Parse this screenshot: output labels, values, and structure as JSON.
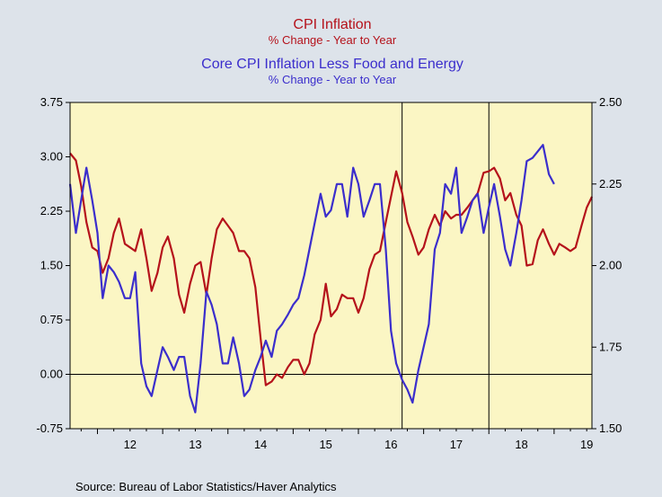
{
  "colors": {
    "background": "#dde3ea",
    "plot_fill": "#fbf6c4",
    "cpi": "#b5121b",
    "core": "#3b2ecc"
  },
  "chart_data": {
    "type": "line",
    "title": "CPI Inflation",
    "title_sub": "% Change - Year to Year",
    "title2": "Core CPI Inflation Less Food and Energy",
    "title2_sub": "% Change - Year to Year",
    "source": "Source:  Bureau of Labor Statistics/Haver Analytics",
    "x_start": 2011.58,
    "x_end": 2019.58,
    "x_tick_labels": [
      {
        "x": 2012.0,
        "label": "12"
      },
      {
        "x": 2013.0,
        "label": "13"
      },
      {
        "x": 2014.0,
        "label": "14"
      },
      {
        "x": 2015.0,
        "label": "15"
      },
      {
        "x": 2016.0,
        "label": "16"
      },
      {
        "x": 2017.0,
        "label": "17"
      },
      {
        "x": 2018.0,
        "label": "18"
      },
      {
        "x": 2019.0,
        "label": "19"
      }
    ],
    "vertical_markers": [
      2016.67,
      2018.0
    ],
    "left_axis": {
      "ylim": [
        -0.75,
        3.75
      ],
      "ticks": [
        -0.75,
        0.0,
        0.75,
        1.5,
        2.25,
        3.0,
        3.75
      ],
      "tick_labels": [
        "-0.75",
        "0.00",
        "0.75",
        "1.50",
        "2.25",
        "3.00",
        "3.75"
      ]
    },
    "right_axis": {
      "ylim": [
        1.5,
        2.5
      ],
      "ticks": [
        1.5,
        1.75,
        2.0,
        2.25,
        2.5
      ],
      "tick_labels": [
        "1.50",
        "1.75",
        "2.00",
        "2.25",
        "2.50"
      ]
    },
    "series": [
      {
        "name": "CPI Inflation",
        "axis": "left",
        "color": "#b5121b",
        "points": [
          [
            2011.58,
            3.05
          ],
          [
            2011.67,
            2.95
          ],
          [
            2011.75,
            2.6
          ],
          [
            2011.83,
            2.1
          ],
          [
            2011.92,
            1.75
          ],
          [
            2012.0,
            1.7
          ],
          [
            2012.08,
            1.4
          ],
          [
            2012.17,
            1.6
          ],
          [
            2012.25,
            1.95
          ],
          [
            2012.33,
            2.15
          ],
          [
            2012.42,
            1.8
          ],
          [
            2012.5,
            1.75
          ],
          [
            2012.58,
            1.7
          ],
          [
            2012.67,
            2.0
          ],
          [
            2012.75,
            1.6
          ],
          [
            2012.83,
            1.15
          ],
          [
            2012.92,
            1.4
          ],
          [
            2013.0,
            1.75
          ],
          [
            2013.08,
            1.9
          ],
          [
            2013.17,
            1.6
          ],
          [
            2013.25,
            1.1
          ],
          [
            2013.33,
            0.85
          ],
          [
            2013.42,
            1.25
          ],
          [
            2013.5,
            1.5
          ],
          [
            2013.58,
            1.55
          ],
          [
            2013.67,
            1.1
          ],
          [
            2013.75,
            1.6
          ],
          [
            2013.83,
            2.0
          ],
          [
            2013.92,
            2.15
          ],
          [
            2014.0,
            2.05
          ],
          [
            2014.08,
            1.95
          ],
          [
            2014.17,
            1.7
          ],
          [
            2014.25,
            1.7
          ],
          [
            2014.33,
            1.6
          ],
          [
            2014.42,
            1.2
          ],
          [
            2014.5,
            0.5
          ],
          [
            2014.58,
            -0.15
          ],
          [
            2014.67,
            -0.1
          ],
          [
            2014.75,
            0.0
          ],
          [
            2014.83,
            -0.05
          ],
          [
            2014.92,
            0.1
          ],
          [
            2015.0,
            0.2
          ],
          [
            2015.08,
            0.2
          ],
          [
            2015.17,
            0.0
          ],
          [
            2015.25,
            0.15
          ],
          [
            2015.33,
            0.55
          ],
          [
            2015.42,
            0.75
          ],
          [
            2015.5,
            1.25
          ],
          [
            2015.58,
            0.8
          ],
          [
            2015.67,
            0.9
          ],
          [
            2015.75,
            1.1
          ],
          [
            2015.83,
            1.05
          ],
          [
            2015.92,
            1.05
          ],
          [
            2016.0,
            0.85
          ],
          [
            2016.08,
            1.05
          ],
          [
            2016.17,
            1.45
          ],
          [
            2016.25,
            1.65
          ],
          [
            2016.33,
            1.7
          ],
          [
            2016.42,
            2.1
          ],
          [
            2016.5,
            2.45
          ],
          [
            2016.58,
            2.8
          ],
          [
            2016.67,
            2.5
          ],
          [
            2016.75,
            2.1
          ],
          [
            2016.83,
            1.9
          ],
          [
            2016.92,
            1.65
          ],
          [
            2017.0,
            1.75
          ],
          [
            2017.08,
            2.0
          ],
          [
            2017.17,
            2.2
          ],
          [
            2017.25,
            2.05
          ],
          [
            2017.33,
            2.25
          ],
          [
            2017.42,
            2.15
          ],
          [
            2017.5,
            2.2
          ],
          [
            2017.58,
            2.2
          ],
          [
            2017.67,
            2.3
          ],
          [
            2017.75,
            2.4
          ],
          [
            2017.83,
            2.5
          ],
          [
            2017.92,
            2.78
          ],
          [
            2018.0,
            2.8
          ],
          [
            2018.08,
            2.85
          ],
          [
            2018.17,
            2.7
          ],
          [
            2018.25,
            2.4
          ],
          [
            2018.33,
            2.5
          ],
          [
            2018.42,
            2.2
          ],
          [
            2018.5,
            2.05
          ],
          [
            2018.58,
            1.5
          ],
          [
            2018.67,
            1.52
          ],
          [
            2018.75,
            1.85
          ],
          [
            2018.83,
            2.0
          ],
          [
            2018.92,
            1.8
          ],
          [
            2019.0,
            1.65
          ],
          [
            2019.08,
            1.8
          ],
          [
            2019.17,
            1.75
          ],
          [
            2019.25,
            1.7
          ],
          [
            2019.33,
            1.75
          ],
          [
            2019.42,
            2.05
          ],
          [
            2019.5,
            2.3
          ],
          [
            2019.58,
            2.45
          ]
        ]
      },
      {
        "name": "Core CPI Inflation Less Food and Energy",
        "axis": "right",
        "color": "#3b2ecc",
        "points": [
          [
            2011.58,
            2.25
          ],
          [
            2011.67,
            2.1
          ],
          [
            2011.75,
            2.2
          ],
          [
            2011.83,
            2.3
          ],
          [
            2011.92,
            2.2
          ],
          [
            2012.0,
            2.1
          ],
          [
            2012.08,
            1.9
          ],
          [
            2012.17,
            2.0
          ],
          [
            2012.25,
            1.98
          ],
          [
            2012.33,
            1.95
          ],
          [
            2012.42,
            1.9
          ],
          [
            2012.5,
            1.9
          ],
          [
            2012.58,
            1.98
          ],
          [
            2012.67,
            1.7
          ],
          [
            2012.75,
            1.63
          ],
          [
            2012.83,
            1.6
          ],
          [
            2012.92,
            1.68
          ],
          [
            2013.0,
            1.75
          ],
          [
            2013.08,
            1.72
          ],
          [
            2013.17,
            1.68
          ],
          [
            2013.25,
            1.72
          ],
          [
            2013.33,
            1.72
          ],
          [
            2013.42,
            1.6
          ],
          [
            2013.5,
            1.55
          ],
          [
            2013.58,
            1.7
          ],
          [
            2013.67,
            1.92
          ],
          [
            2013.75,
            1.88
          ],
          [
            2013.83,
            1.82
          ],
          [
            2013.92,
            1.7
          ],
          [
            2014.0,
            1.7
          ],
          [
            2014.08,
            1.78
          ],
          [
            2014.17,
            1.7
          ],
          [
            2014.25,
            1.6
          ],
          [
            2014.33,
            1.62
          ],
          [
            2014.42,
            1.68
          ],
          [
            2014.5,
            1.72
          ],
          [
            2014.58,
            1.77
          ],
          [
            2014.67,
            1.72
          ],
          [
            2014.75,
            1.8
          ],
          [
            2014.83,
            1.82
          ],
          [
            2014.92,
            1.85
          ],
          [
            2015.0,
            1.88
          ],
          [
            2015.08,
            1.9
          ],
          [
            2015.17,
            1.97
          ],
          [
            2015.25,
            2.05
          ],
          [
            2015.33,
            2.13
          ],
          [
            2015.42,
            2.22
          ],
          [
            2015.5,
            2.15
          ],
          [
            2015.58,
            2.17
          ],
          [
            2015.67,
            2.25
          ],
          [
            2015.75,
            2.25
          ],
          [
            2015.83,
            2.15
          ],
          [
            2015.92,
            2.3
          ],
          [
            2016.0,
            2.25
          ],
          [
            2016.08,
            2.15
          ],
          [
            2016.17,
            2.2
          ],
          [
            2016.25,
            2.25
          ],
          [
            2016.33,
            2.25
          ],
          [
            2016.42,
            2.05
          ],
          [
            2016.5,
            1.8
          ],
          [
            2016.58,
            1.7
          ],
          [
            2016.67,
            1.65
          ],
          [
            2016.75,
            1.62
          ],
          [
            2016.83,
            1.58
          ],
          [
            2016.92,
            1.68
          ],
          [
            2017.0,
            1.75
          ],
          [
            2017.08,
            1.82
          ],
          [
            2017.17,
            2.05
          ],
          [
            2017.25,
            2.1
          ],
          [
            2017.33,
            2.25
          ],
          [
            2017.42,
            2.22
          ],
          [
            2017.5,
            2.3
          ],
          [
            2017.58,
            2.1
          ],
          [
            2017.67,
            2.15
          ],
          [
            2017.75,
            2.2
          ],
          [
            2017.83,
            2.22
          ],
          [
            2017.92,
            2.1
          ],
          [
            2018.0,
            2.18
          ],
          [
            2018.08,
            2.25
          ],
          [
            2018.17,
            2.15
          ],
          [
            2018.25,
            2.05
          ],
          [
            2018.33,
            2.0
          ],
          [
            2018.42,
            2.1
          ],
          [
            2018.5,
            2.2
          ],
          [
            2018.58,
            2.32
          ],
          [
            2018.67,
            2.33
          ],
          [
            2018.75,
            2.35
          ],
          [
            2018.83,
            2.37
          ],
          [
            2018.92,
            2.28
          ],
          [
            2019.0,
            2.25
          ]
        ]
      }
    ]
  }
}
